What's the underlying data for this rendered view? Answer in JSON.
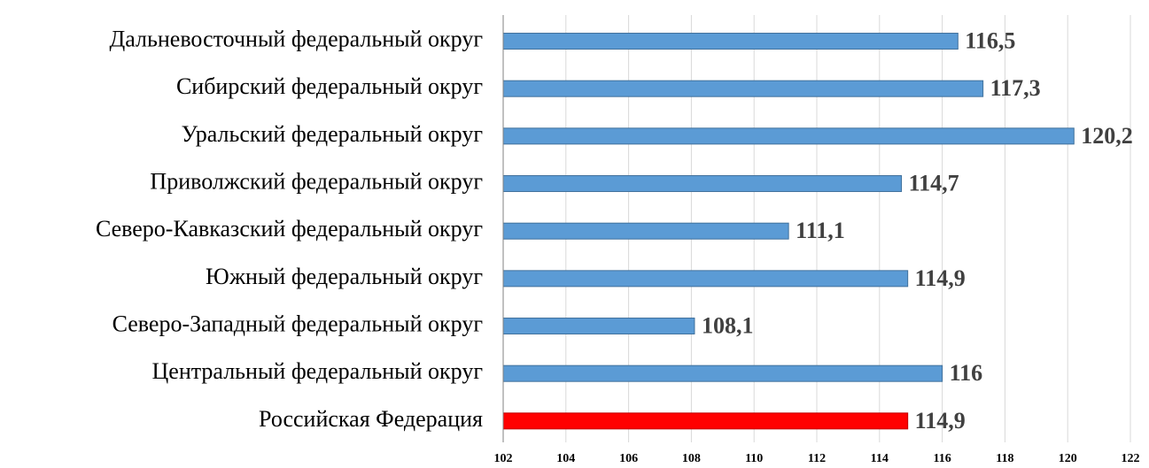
{
  "chart_data": {
    "type": "barh",
    "categories": [
      "Дальневосточный федеральный округ",
      "Сибирский федеральный округ",
      "Уральский федеральный округ",
      "Приволжский федеральный округ",
      "Северо-Кавказский федеральный округ",
      "Южный федеральный округ",
      "Северо-Западный федеральный округ",
      "Центральный федеральный округ",
      "Российская Федерация"
    ],
    "values": [
      116.5,
      117.3,
      120.2,
      114.7,
      111.1,
      114.9,
      108.1,
      116,
      114.9
    ],
    "value_labels": [
      "116,5",
      "117,3",
      "120,2",
      "114,7",
      "111,1",
      "114,9",
      "108,1",
      "116",
      "114,9"
    ],
    "colors": [
      "#5b9bd5",
      "#5b9bd5",
      "#5b9bd5",
      "#5b9bd5",
      "#5b9bd5",
      "#5b9bd5",
      "#5b9bd5",
      "#5b9bd5",
      "#ff0000"
    ],
    "xlim": [
      102,
      122
    ],
    "xticks": [
      102,
      104,
      106,
      108,
      110,
      112,
      114,
      116,
      118,
      120,
      122
    ],
    "grid": true
  }
}
